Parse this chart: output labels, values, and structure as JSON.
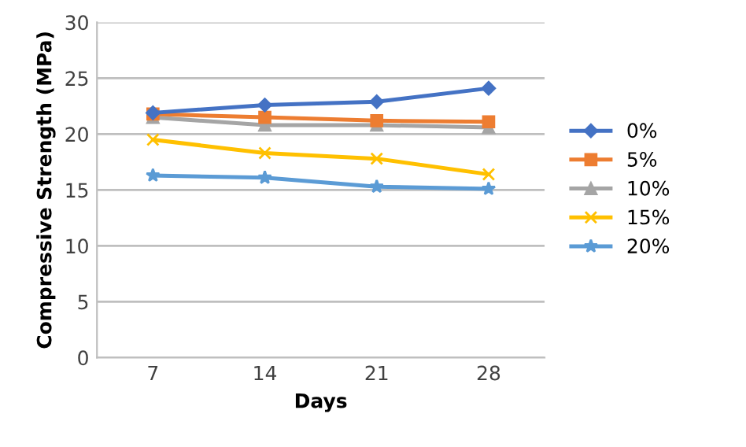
{
  "chart_data": {
    "type": "line",
    "xlabel": "Days",
    "ylabel": "Compressive Strength (MPa)",
    "categories": [
      "7",
      "14",
      "21",
      "28"
    ],
    "series": [
      {
        "name": "0%",
        "color": "#4472c4",
        "marker": "diamond",
        "values": [
          21.9,
          22.6,
          22.9,
          24.1
        ]
      },
      {
        "name": "5%",
        "color": "#ed7d31",
        "marker": "square",
        "values": [
          21.8,
          21.5,
          21.2,
          21.1
        ]
      },
      {
        "name": "10%",
        "color": "#a5a5a5",
        "marker": "triangle",
        "values": [
          21.5,
          20.8,
          20.8,
          20.6
        ]
      },
      {
        "name": "15%",
        "color": "#ffc000",
        "marker": "cross",
        "values": [
          19.5,
          18.3,
          17.8,
          16.4
        ]
      },
      {
        "name": "20%",
        "color": "#5b9bd5",
        "marker": "star",
        "values": [
          16.3,
          16.1,
          15.3,
          15.1
        ]
      }
    ],
    "ylim": [
      0,
      30
    ],
    "yticks": [
      0,
      5,
      10,
      15,
      20,
      25,
      30
    ],
    "grid": "y",
    "legend": "right",
    "line_style": "solid"
  }
}
